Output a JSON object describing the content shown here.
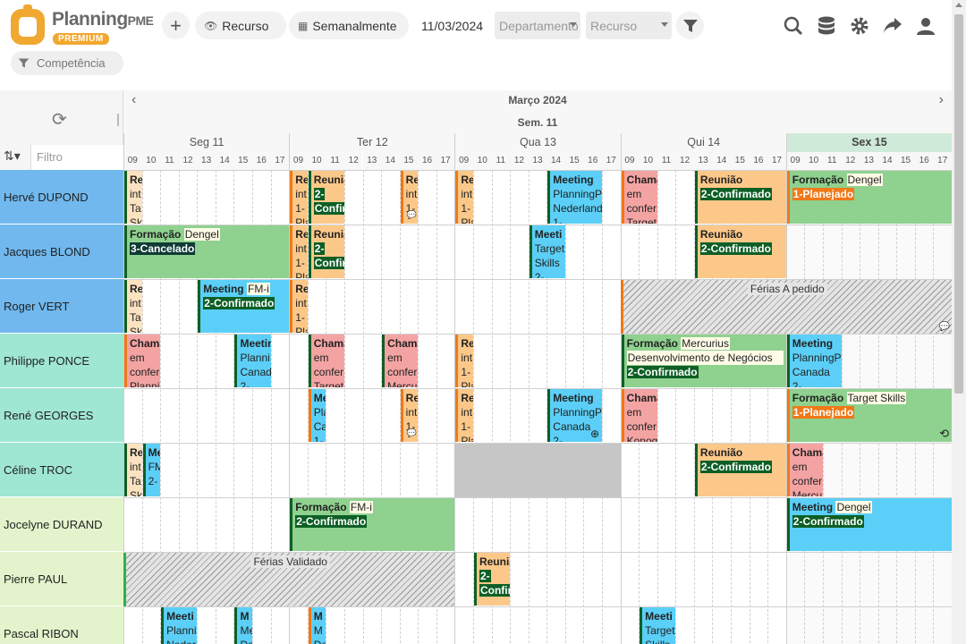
{
  "header": {
    "brand": "Planning",
    "brand_suffix": "PME",
    "badge": "PREMIUM",
    "add_label": "+",
    "view_label": "Recurso",
    "period_label": "Semanalmente",
    "date_value": "11/03/2024",
    "department_placeholder": "Departamento",
    "resource_placeholder": "Recurso",
    "competence_placeholder": "Competência",
    "icons": [
      "plus-icon",
      "eye-icon",
      "calendar-icon",
      "funnel-icon",
      "search-icon",
      "database-icon",
      "gear-icon",
      "share-icon",
      "user-icon"
    ]
  },
  "grid": {
    "month_label": "Março 2024",
    "week_label": "Sem. 11",
    "filter_placeholder": "Filtro",
    "days": [
      {
        "label": "Seg 11"
      },
      {
        "label": "Ter 12"
      },
      {
        "label": "Qua 13"
      },
      {
        "label": "Qui 14"
      },
      {
        "label": "Sex 15",
        "today": true
      }
    ],
    "hours": [
      "09",
      "10",
      "11",
      "12",
      "13",
      "14",
      "15",
      "16",
      "17"
    ],
    "resources": [
      {
        "name": "Hervé DUPOND",
        "color": "blue"
      },
      {
        "name": "Jacques BLOND",
        "color": "blue"
      },
      {
        "name": "Roger VERT",
        "color": "blue"
      },
      {
        "name": "Philippe PONCE",
        "color": "teal"
      },
      {
        "name": "René GEORGES",
        "color": "teal"
      },
      {
        "name": "Céline TROC",
        "color": "teal"
      },
      {
        "name": "Jocelyne DURAND",
        "color": "lime"
      },
      {
        "name": "Pierre PAUL",
        "color": "lime"
      },
      {
        "name": "Pascal RIBON",
        "color": "lime"
      }
    ]
  },
  "tasks": [
    {
      "row": 0,
      "day": 0,
      "h0": 0,
      "h1": 1,
      "style": "cream",
      "lines": [
        "Re",
        "int",
        "Ta",
        "Sk"
      ]
    },
    {
      "row": 0,
      "day": 1,
      "h0": 0,
      "h1": 1,
      "style": "ora-o",
      "lines": [
        "Re",
        "int",
        "1-",
        "Pla"
      ]
    },
    {
      "row": 0,
      "day": 1,
      "h0": 1,
      "h1": 3,
      "style": "ora",
      "title": "Reuniã",
      "status": "2-",
      "status2": "Confirm",
      "stype": "conf"
    },
    {
      "row": 0,
      "day": 1,
      "h0": 6,
      "h1": 7,
      "style": "ora-o",
      "lines": [
        "Re",
        "int",
        "1-"
      ],
      "bubble": true
    },
    {
      "row": 0,
      "day": 2,
      "h0": 0,
      "h1": 1,
      "style": "ora-o",
      "lines": [
        "Re",
        "int",
        "1-",
        "Pla"
      ]
    },
    {
      "row": 0,
      "day": 2,
      "h0": 5,
      "h1": 8,
      "style": "blu",
      "title": "Meeting",
      "lines2": [
        "PlanningP",
        "Nederland",
        "1-"
      ]
    },
    {
      "row": 0,
      "day": 3,
      "h0": 0,
      "h1": 2,
      "style": "pnk",
      "lines": [
        "Chama",
        "em",
        "confer",
        "Target"
      ]
    },
    {
      "row": 0,
      "day": 3,
      "h0": 4,
      "h1": 9,
      "style": "ora",
      "title": "Reunião",
      "status": "2-Confirmado",
      "stype": "conf"
    },
    {
      "row": 0,
      "day": 4,
      "h0": 0,
      "h1": 9,
      "style": "grn-o",
      "title": "Formação",
      "sub": "Dengel",
      "status": "1-Planejado",
      "stype": "plan"
    },
    {
      "row": 1,
      "day": 0,
      "h0": 0,
      "h1": 9,
      "style": "grn",
      "title": "Formação",
      "sub": "Dengel",
      "status": "3-Cancelado",
      "stype": "canc"
    },
    {
      "row": 1,
      "day": 1,
      "h0": 0,
      "h1": 1,
      "style": "ora-o",
      "lines": [
        "Re",
        "int",
        "1-",
        "Pla"
      ]
    },
    {
      "row": 1,
      "day": 1,
      "h0": 1,
      "h1": 3,
      "style": "ora",
      "title": "Reuniã",
      "status": "2-",
      "status2": "Confirm",
      "stype": "conf"
    },
    {
      "row": 1,
      "day": 2,
      "h0": 4,
      "h1": 6,
      "style": "blu",
      "title": "Meeti",
      "lines2": [
        "Target",
        "Skills",
        "2-"
      ]
    },
    {
      "row": 1,
      "day": 3,
      "h0": 4,
      "h1": 9,
      "style": "ora",
      "title": "Reunião",
      "status": "2-Confirmado",
      "stype": "conf"
    },
    {
      "row": 2,
      "day": 0,
      "h0": 0,
      "h1": 1,
      "style": "cream",
      "lines": [
        "Re",
        "int",
        "Ta",
        "Sk"
      ]
    },
    {
      "row": 2,
      "day": 0,
      "h0": 4,
      "h1": 9,
      "style": "blu",
      "title": "Meeting",
      "sub": "FM-i",
      "status": "2-Confirmado",
      "stype": "conf"
    },
    {
      "row": 2,
      "day": 1,
      "h0": 0,
      "h1": 1,
      "style": "ora-o",
      "lines": [
        "Re",
        "int",
        "1-",
        "Pla"
      ]
    },
    {
      "row": 3,
      "day": 0,
      "h0": 0,
      "h1": 2,
      "style": "pnk",
      "lines": [
        "Chama",
        "em",
        "confer",
        "Planni"
      ]
    },
    {
      "row": 3,
      "day": 0,
      "h0": 6,
      "h1": 8,
      "style": "blu",
      "title": "Meetir",
      "lines2": [
        "Planni",
        "Canad",
        "2-"
      ]
    },
    {
      "row": 3,
      "day": 1,
      "h0": 1,
      "h1": 3,
      "style": "pnk-g",
      "lines": [
        "Chama",
        "em",
        "confer",
        "Target"
      ]
    },
    {
      "row": 3,
      "day": 1,
      "h0": 5,
      "h1": 7,
      "style": "pnk-g",
      "lines": [
        "Chama",
        "em",
        "confer",
        "Mercu"
      ]
    },
    {
      "row": 3,
      "day": 2,
      "h0": 0,
      "h1": 1,
      "style": "ora-o",
      "lines": [
        "Re",
        "int",
        "1-",
        "Pla"
      ]
    },
    {
      "row": 3,
      "day": 3,
      "h0": 0,
      "h1": 9,
      "style": "grn",
      "title": "Formação",
      "sub": "Mercurius",
      "line3": "Desenvolvimento de Negócios",
      "status": "2-Confirmado",
      "stype": "conf"
    },
    {
      "row": 3,
      "day": 4,
      "h0": 0,
      "h1": 3,
      "style": "blu",
      "title": "Meeting",
      "lines2": [
        "PlanningP",
        "Canada",
        "2-"
      ]
    },
    {
      "row": 4,
      "day": 1,
      "h0": 1,
      "h1": 2,
      "style": "blu",
      "title": "Me",
      "lines2": [
        "Pla",
        "Ca",
        "1-"
      ],
      "oedge": true
    },
    {
      "row": 4,
      "day": 1,
      "h0": 6,
      "h1": 7,
      "style": "ora-o",
      "lines": [
        "Re",
        "int",
        "1-"
      ],
      "bubble": true
    },
    {
      "row": 4,
      "day": 2,
      "h0": 0,
      "h1": 1,
      "style": "ora-o",
      "lines": [
        "Re",
        "int",
        "1-",
        "Pla"
      ]
    },
    {
      "row": 4,
      "day": 2,
      "h0": 5,
      "h1": 8,
      "style": "blu",
      "title": "Meeting",
      "lines2": [
        "PlanningP",
        "Canada",
        "2-"
      ],
      "plus": true
    },
    {
      "row": 4,
      "day": 3,
      "h0": 0,
      "h1": 2,
      "style": "pnk",
      "lines": [
        "Chama",
        "em",
        "confer",
        "Konog"
      ]
    },
    {
      "row": 4,
      "day": 4,
      "h0": 0,
      "h1": 9,
      "style": "grn-o",
      "title": "Formação",
      "sub": "Target Skills",
      "status": "1-Planejado",
      "stype": "plan",
      "repeat": true
    },
    {
      "row": 5,
      "day": 0,
      "h0": 0,
      "h1": 1,
      "style": "cream",
      "lines": [
        "Re",
        "int",
        "Ta",
        "Sk"
      ]
    },
    {
      "row": 5,
      "day": 0,
      "h0": 1,
      "h1": 2,
      "style": "blu",
      "title": "Me",
      "lines2": [
        "FM",
        "2-"
      ]
    },
    {
      "row": 5,
      "day": 3,
      "h0": 4,
      "h1": 9,
      "style": "ora",
      "title": "Reunião",
      "status": "2-Confirmado",
      "stype": "conf"
    },
    {
      "row": 5,
      "day": 4,
      "h0": 0,
      "h1": 2,
      "style": "pnk",
      "lines": [
        "Chama",
        "em",
        "confer",
        "Mercu"
      ]
    },
    {
      "row": 6,
      "day": 1,
      "h0": 0,
      "h1": 9,
      "style": "grn",
      "title": "Formação",
      "sub": "FM-i",
      "status": "2-Confirmado",
      "stype": "conf"
    },
    {
      "row": 6,
      "day": 4,
      "h0": 0,
      "h1": 9,
      "style": "blu",
      "title": "Meeting",
      "sub": "Dengel",
      "status": "2-Confirmado",
      "stype": "conf"
    },
    {
      "row": 7,
      "day": 2,
      "h0": 1,
      "h1": 3,
      "style": "ora",
      "title": "Reuniã",
      "status": "2-",
      "status2": "Confir",
      "stype": "conf"
    },
    {
      "row": 8,
      "day": 0,
      "h0": 2,
      "h1": 4,
      "style": "blu",
      "title": "Meeti",
      "lines2": [
        "Planni",
        "Neder"
      ]
    },
    {
      "row": 8,
      "day": 0,
      "h0": 6,
      "h1": 7,
      "style": "blu",
      "title": "M",
      "lines2": [
        "Me",
        "De"
      ]
    },
    {
      "row": 8,
      "day": 1,
      "h0": 1,
      "h1": 2,
      "style": "blu",
      "title": "M",
      "lines2": [
        "M",
        "De"
      ],
      "oedge": true
    },
    {
      "row": 8,
      "day": 3,
      "h0": 1,
      "h1": 3,
      "style": "blu",
      "title": "Meeti",
      "lines2": [
        "Target",
        "Skills"
      ]
    }
  ],
  "absences": [
    {
      "row": 2,
      "day": 3,
      "h0": 0,
      "day_end": 4,
      "h1": 9,
      "label": "Férias A pedido",
      "edge": "orange",
      "bubble": true
    },
    {
      "row": 7,
      "day": 0,
      "h0": 0,
      "day_end": 1,
      "h1": 9,
      "label": "Férias Validado",
      "edge": "green"
    }
  ],
  "unavailable": [
    {
      "row": 5,
      "day": 2,
      "h0": 0,
      "h1": 9
    }
  ]
}
